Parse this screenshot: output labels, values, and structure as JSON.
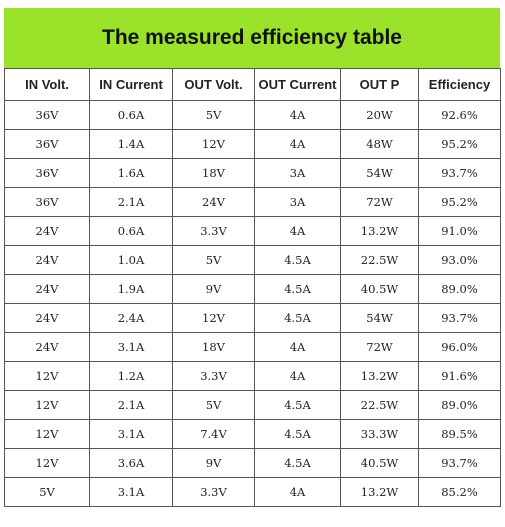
{
  "header": {
    "title": "The measured efficiency table"
  },
  "table": {
    "columns": [
      "IN Volt.",
      "IN Current",
      "OUT Volt.",
      "OUT Current",
      "OUT P",
      "Efficiency"
    ],
    "rows": [
      [
        "36V",
        "0.6A",
        "5V",
        "4A",
        "20W",
        "92.6%"
      ],
      [
        "36V",
        "1.4A",
        "12V",
        "4A",
        "48W",
        "95.2%"
      ],
      [
        "36V",
        "1.6A",
        "18V",
        "3A",
        "54W",
        "93.7%"
      ],
      [
        "36V",
        "2.1A",
        "24V",
        "3A",
        "72W",
        "95.2%"
      ],
      [
        "24V",
        "0.6A",
        "3.3V",
        "4A",
        "13.2W",
        "91.0%"
      ],
      [
        "24V",
        "1.0A",
        "5V",
        "4.5A",
        "22.5W",
        "93.0%"
      ],
      [
        "24V",
        "1.9A",
        "9V",
        "4.5A",
        "40.5W",
        "89.0%"
      ],
      [
        "24V",
        "2.4A",
        "12V",
        "4.5A",
        "54W",
        "93.7%"
      ],
      [
        "24V",
        "3.1A",
        "18V",
        "4A",
        "72W",
        "96.0%"
      ],
      [
        "12V",
        "1.2A",
        "3.3V",
        "4A",
        "13.2W",
        "91.6%"
      ],
      [
        "12V",
        "2.1A",
        "5V",
        "4.5A",
        "22.5W",
        "89.0%"
      ],
      [
        "12V",
        "3.1A",
        "7.4V",
        "4.5A",
        "33.3W",
        "89.5%"
      ],
      [
        "12V",
        "3.6A",
        "9V",
        "4.5A",
        "40.5W",
        "93.7%"
      ],
      [
        "5V",
        "3.1A",
        "3.3V",
        "4A",
        "13.2W",
        "85.2%"
      ]
    ]
  }
}
